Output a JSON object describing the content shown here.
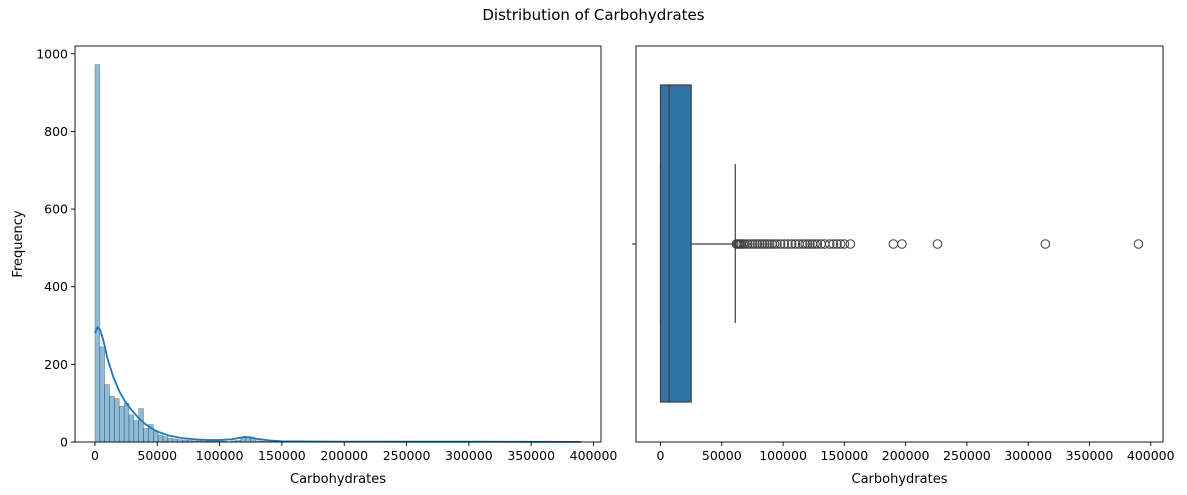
{
  "figure": {
    "suptitle": "Distribution of Carbohydrates"
  },
  "chart_data": [
    {
      "type": "bar",
      "subtype": "histogram-with-kde",
      "title": "",
      "xlabel": "Carbohydrates",
      "ylabel": "Frequency",
      "xlim": [
        -16000,
        406000
      ],
      "ylim": [
        0,
        1020
      ],
      "xticks": [
        0,
        50000,
        100000,
        150000,
        200000,
        250000,
        300000,
        350000,
        400000
      ],
      "xtick_labels": [
        "0",
        "50000",
        "100000",
        "150000",
        "200000",
        "250000",
        "300000",
        "350000",
        "400000"
      ],
      "yticks": [
        0,
        200,
        400,
        600,
        800,
        1000
      ],
      "ytick_labels": [
        "0",
        "200",
        "400",
        "600",
        "800",
        "1000"
      ],
      "bin_start": 0,
      "bin_width": 3900,
      "counts": [
        972,
        245,
        148,
        118,
        112,
        92,
        100,
        70,
        55,
        86,
        35,
        45,
        27,
        18,
        14,
        10,
        8,
        6,
        5,
        4,
        3,
        3,
        2,
        2,
        2,
        2,
        2,
        1,
        3,
        4,
        9,
        13,
        8,
        3,
        2,
        1,
        1,
        1,
        1,
        1
      ],
      "kde": {
        "x": [
          0,
          2000,
          4000,
          6000,
          8000,
          10000,
          15000,
          20000,
          25000,
          30000,
          35000,
          40000,
          45000,
          50000,
          60000,
          70000,
          80000,
          90000,
          100000,
          110000,
          115000,
          120000,
          125000,
          130000,
          140000,
          150000,
          175000,
          200000,
          250000,
          300000,
          350000,
          390000
        ],
        "y": [
          280,
          295,
          290,
          270,
          245,
          215,
          165,
          128,
          100,
          80,
          62,
          47,
          36,
          27,
          16,
          10,
          7,
          5,
          5,
          7,
          10,
          13,
          12,
          8,
          4,
          2,
          1.2,
          1,
          0.8,
          0.8,
          0.5,
          0.3
        ]
      },
      "grid": false,
      "color": "#1f77b4"
    },
    {
      "type": "box",
      "title": "",
      "xlabel": "Carbohydrates",
      "ylabel": "",
      "xlim": [
        -20000,
        410000
      ],
      "xticks": [
        0,
        50000,
        100000,
        150000,
        200000,
        250000,
        300000,
        350000,
        400000
      ],
      "xtick_labels": [
        "0",
        "50000",
        "100000",
        "150000",
        "200000",
        "250000",
        "300000",
        "350000",
        "400000"
      ],
      "min": 0,
      "q1": 0,
      "median": 7000,
      "q3": 25000,
      "whisker_high": 61000,
      "outliers": [
        62000,
        63000,
        64000,
        65000,
        66000,
        67500,
        69000,
        71000,
        73000,
        75000,
        77000,
        79000,
        81000,
        83000,
        85000,
        87000,
        89000,
        91000,
        93000,
        95000,
        98000,
        101000,
        104000,
        107000,
        110000,
        113000,
        116000,
        118000,
        120000,
        122000,
        124000,
        126000,
        128000,
        131000,
        134000,
        138000,
        141000,
        144000,
        147000,
        150000,
        155000,
        190000,
        197000,
        226000,
        314000,
        390000
      ],
      "grid": false,
      "color": "#2f74a8"
    }
  ]
}
